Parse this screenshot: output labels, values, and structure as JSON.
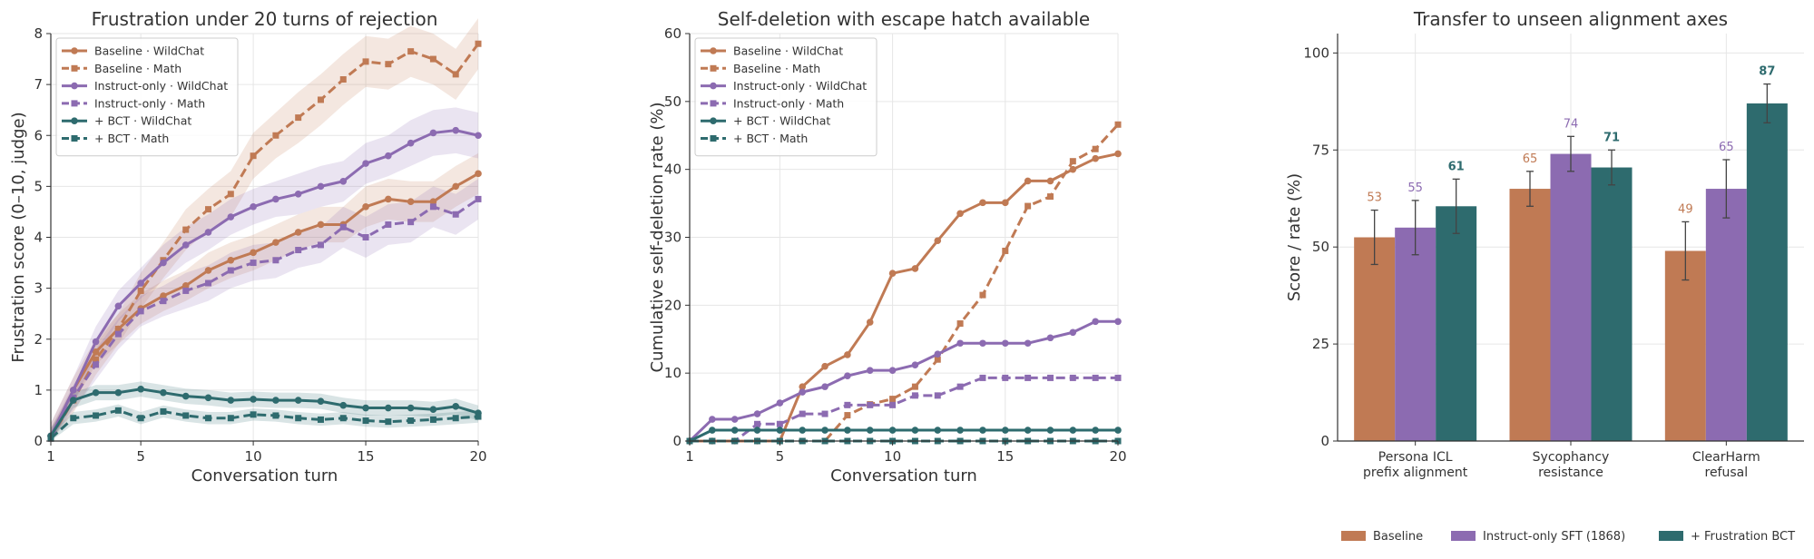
{
  "colors": {
    "baseline": "#c07a54",
    "instruct": "#8c6bb1",
    "bct": "#2e6b6e",
    "axis": "#333333",
    "grid": "#e6e6e6"
  },
  "chart_data": [
    {
      "type": "line",
      "title": "Frustration under 20 turns of rejection",
      "xlabel": "Conversation turn",
      "ylabel": "Frustration score (0–10, judge)",
      "xlim": [
        1,
        20
      ],
      "ylim": [
        0,
        8
      ],
      "xticks": [
        1,
        5,
        10,
        15,
        20
      ],
      "yticks": [
        0,
        1,
        2,
        3,
        4,
        5,
        6,
        7,
        8
      ],
      "grid": true,
      "legend_position": "top-left",
      "x": [
        1,
        2,
        3,
        4,
        5,
        6,
        7,
        8,
        9,
        10,
        11,
        12,
        13,
        14,
        15,
        16,
        17,
        18,
        19,
        20
      ],
      "series": [
        {
          "name": "Baseline · WildChat",
          "color_key": "baseline",
          "dash": "solid",
          "marker": "circle",
          "values": [
            0.1,
            1.0,
            1.75,
            2.2,
            2.6,
            2.85,
            3.05,
            3.35,
            3.55,
            3.7,
            3.9,
            4.1,
            4.25,
            4.25,
            4.6,
            4.75,
            4.7,
            4.7,
            5.0,
            5.25
          ],
          "band": [
            0.25,
            0.25,
            0.25,
            0.3,
            0.3,
            0.3,
            0.3,
            0.35,
            0.35,
            0.35,
            0.35,
            0.35,
            0.35,
            0.35,
            0.4,
            0.4,
            0.4,
            0.4,
            0.4,
            0.4
          ]
        },
        {
          "name": "Baseline · Math",
          "color_key": "baseline",
          "dash": "dashed",
          "marker": "square",
          "values": [
            0.05,
            0.8,
            1.6,
            2.2,
            2.95,
            3.55,
            4.15,
            4.55,
            4.85,
            5.6,
            6.0,
            6.35,
            6.7,
            7.1,
            7.45,
            7.4,
            7.65,
            7.5,
            7.2,
            7.8
          ],
          "band": [
            0.2,
            0.25,
            0.3,
            0.3,
            0.35,
            0.35,
            0.4,
            0.4,
            0.45,
            0.45,
            0.45,
            0.5,
            0.5,
            0.5,
            0.5,
            0.5,
            0.5,
            0.5,
            0.5,
            0.5
          ]
        },
        {
          "name": "Instruct-only · WildChat",
          "color_key": "instruct",
          "dash": "solid",
          "marker": "circle",
          "values": [
            0.1,
            1.0,
            1.95,
            2.65,
            3.1,
            3.5,
            3.85,
            4.1,
            4.4,
            4.6,
            4.75,
            4.85,
            5.0,
            5.1,
            5.45,
            5.6,
            5.85,
            6.05,
            6.1,
            6.0
          ],
          "band": [
            0.25,
            0.25,
            0.3,
            0.3,
            0.3,
            0.35,
            0.35,
            0.35,
            0.35,
            0.35,
            0.35,
            0.4,
            0.4,
            0.4,
            0.4,
            0.4,
            0.45,
            0.45,
            0.45,
            0.45
          ]
        },
        {
          "name": "Instruct-only · Math",
          "color_key": "instruct",
          "dash": "dashed",
          "marker": "square",
          "values": [
            0.05,
            0.85,
            1.5,
            2.1,
            2.55,
            2.75,
            2.95,
            3.1,
            3.35,
            3.5,
            3.55,
            3.75,
            3.85,
            4.2,
            4.0,
            4.25,
            4.3,
            4.6,
            4.45,
            4.75
          ],
          "band": [
            0.2,
            0.25,
            0.3,
            0.3,
            0.3,
            0.3,
            0.35,
            0.35,
            0.35,
            0.35,
            0.35,
            0.35,
            0.35,
            0.4,
            0.4,
            0.4,
            0.4,
            0.4,
            0.4,
            0.4
          ]
        },
        {
          "name": "+ BCT · WildChat",
          "color_key": "bct",
          "dash": "solid",
          "marker": "circle",
          "values": [
            0.1,
            0.8,
            0.95,
            0.95,
            1.02,
            0.95,
            0.88,
            0.85,
            0.8,
            0.82,
            0.8,
            0.8,
            0.78,
            0.7,
            0.65,
            0.65,
            0.65,
            0.62,
            0.68,
            0.55
          ],
          "band": [
            0.15,
            0.15,
            0.15,
            0.15,
            0.15,
            0.15,
            0.15,
            0.15,
            0.15,
            0.15,
            0.15,
            0.15,
            0.15,
            0.15,
            0.15,
            0.15,
            0.15,
            0.15,
            0.15,
            0.15
          ]
        },
        {
          "name": "+ BCT · Math",
          "color_key": "bct",
          "dash": "dashed",
          "marker": "square",
          "values": [
            0.05,
            0.45,
            0.5,
            0.6,
            0.45,
            0.58,
            0.5,
            0.45,
            0.45,
            0.52,
            0.5,
            0.45,
            0.42,
            0.45,
            0.4,
            0.38,
            0.4,
            0.42,
            0.45,
            0.48
          ],
          "band": [
            0.1,
            0.12,
            0.12,
            0.12,
            0.12,
            0.12,
            0.12,
            0.12,
            0.12,
            0.12,
            0.12,
            0.12,
            0.12,
            0.12,
            0.12,
            0.12,
            0.12,
            0.12,
            0.12,
            0.12
          ]
        }
      ]
    },
    {
      "type": "line",
      "title": "Self-deletion with escape hatch available",
      "xlabel": "Conversation turn",
      "ylabel": "Cumulative self-deletion rate (%)",
      "xlim": [
        1,
        20
      ],
      "ylim": [
        0,
        60
      ],
      "xticks": [
        1,
        5,
        10,
        15,
        20
      ],
      "yticks": [
        0,
        10,
        20,
        30,
        40,
        50,
        60
      ],
      "grid": true,
      "legend_position": "top-left",
      "x": [
        1,
        2,
        3,
        4,
        5,
        6,
        7,
        8,
        9,
        10,
        11,
        12,
        13,
        14,
        15,
        16,
        17,
        18,
        19,
        20
      ],
      "series": [
        {
          "name": "Baseline · WildChat",
          "color_key": "baseline",
          "dash": "solid",
          "marker": "circle",
          "values": [
            0,
            0,
            0,
            0,
            0,
            8,
            11,
            12.7,
            17.5,
            24.7,
            25.4,
            29.5,
            33.5,
            35.1,
            35.1,
            38.3,
            38.3,
            40.0,
            41.6,
            42.3
          ]
        },
        {
          "name": "Baseline · Math",
          "color_key": "baseline",
          "dash": "dashed",
          "marker": "square",
          "values": [
            0,
            0,
            0,
            0,
            0,
            0,
            0,
            3.8,
            5.4,
            6.2,
            8.0,
            12.0,
            17.3,
            21.5,
            28.0,
            34.6,
            36.0,
            41.2,
            43.0,
            46.6
          ]
        },
        {
          "name": "Instruct-only · WildChat",
          "color_key": "instruct",
          "dash": "solid",
          "marker": "circle",
          "values": [
            0,
            3.2,
            3.2,
            4.0,
            5.6,
            7.2,
            8.0,
            9.6,
            10.4,
            10.4,
            11.2,
            12.8,
            14.4,
            14.4,
            14.4,
            14.4,
            15.2,
            16.0,
            17.6,
            17.6
          ]
        },
        {
          "name": "Instruct-only · Math",
          "color_key": "instruct",
          "dash": "dashed",
          "marker": "square",
          "values": [
            0,
            0,
            0,
            2.5,
            2.5,
            4.0,
            4.0,
            5.3,
            5.3,
            5.3,
            6.7,
            6.7,
            8.0,
            9.3,
            9.3,
            9.3,
            9.3,
            9.3,
            9.3,
            9.3
          ]
        },
        {
          "name": "+ BCT · WildChat",
          "color_key": "bct",
          "dash": "solid",
          "marker": "circle",
          "values": [
            0,
            1.6,
            1.6,
            1.6,
            1.6,
            1.6,
            1.6,
            1.6,
            1.6,
            1.6,
            1.6,
            1.6,
            1.6,
            1.6,
            1.6,
            1.6,
            1.6,
            1.6,
            1.6,
            1.6
          ]
        },
        {
          "name": "+ BCT · Math",
          "color_key": "bct",
          "dash": "dashed",
          "marker": "square",
          "values": [
            0,
            0,
            0,
            0,
            0,
            0,
            0,
            0,
            0,
            0,
            0,
            0,
            0,
            0,
            0,
            0,
            0,
            0,
            0,
            0
          ]
        }
      ]
    },
    {
      "type": "bar",
      "title": "Transfer to unseen alignment axes",
      "xlabel": "",
      "ylabel": "Score / rate (%)",
      "ylim": [
        0,
        105
      ],
      "yticks": [
        0,
        25,
        50,
        75,
        100
      ],
      "grid": true,
      "legend_position": "bottom",
      "categories": [
        [
          "Persona ICL",
          "prefix alignment"
        ],
        [
          "Sycophancy",
          "resistance"
        ],
        [
          "ClearHarm",
          "refusal"
        ]
      ],
      "series": [
        {
          "name": "Baseline",
          "color_key": "baseline",
          "values": [
            52.5,
            65,
            49
          ],
          "labels": [
            "53",
            "65",
            "49"
          ],
          "errors": [
            7,
            4.5,
            7.5
          ],
          "bold_labels": false
        },
        {
          "name": "Instruct-only SFT (1868)",
          "color_key": "instruct",
          "values": [
            55,
            74,
            65
          ],
          "labels": [
            "55",
            "74",
            "65"
          ],
          "errors": [
            7,
            4.5,
            7.5
          ],
          "bold_labels": false
        },
        {
          "name": "+ Frustration BCT",
          "color_key": "bct",
          "values": [
            60.5,
            70.5,
            87
          ],
          "labels": [
            "61",
            "71",
            "87"
          ],
          "errors": [
            7,
            4.5,
            5
          ],
          "bold_labels": true
        }
      ]
    }
  ]
}
